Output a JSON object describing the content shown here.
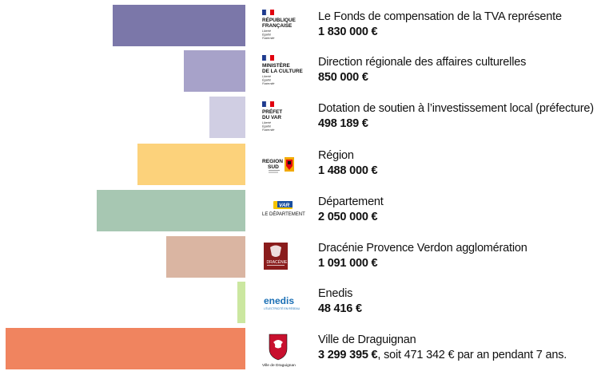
{
  "chart_data": {
    "type": "bar",
    "orientation": "horizontal",
    "categories": [
      "Le Fonds de compensation de la TVA représente",
      "Direction régionale des affaires culturelles",
      "Dotation de soutien à l’investissement local (préfecture)",
      "Région",
      "Département",
      "Dracénie Provence Verdon agglomération",
      "Enedis",
      "Ville de Draguignan"
    ],
    "values": [
      1830000,
      850000,
      498189,
      1488000,
      2050000,
      1091000,
      48416,
      3299395
    ],
    "value_labels": [
      "1 830 000 €",
      "850 000 €",
      "498 189 €",
      "1 488 000 €",
      "2 050 000 €",
      "1 091 000 €",
      "48 416 €",
      "3 299 395 €"
    ],
    "colors": [
      "#7b77a9",
      "#a7a2c9",
      "#d0cee3",
      "#fcd27b",
      "#a7c7b2",
      "#dab5a2",
      "#cbe7a0",
      "#f0845f"
    ],
    "xlim": [
      0,
      3299395
    ]
  },
  "annotations": {
    "draguignan_note": ", soit 471 342 € par an pendant 7 ans."
  },
  "logos": [
    {
      "icon": "marianne-logo",
      "lines": [
        "RÉPUBLIQUE",
        "FRANÇAISE"
      ],
      "motto": [
        "Liberté",
        "Égalité",
        "Fraternité"
      ]
    },
    {
      "icon": "marianne-logo",
      "lines": [
        "MINISTÈRE",
        "DE LA CULTURE"
      ],
      "motto": [
        "Liberté",
        "Égalité",
        "Fraternité"
      ]
    },
    {
      "icon": "marianne-logo",
      "lines": [
        "PRÉFET",
        "DU VAR"
      ],
      "motto": [
        "Liberté",
        "Égalité",
        "Fraternité"
      ]
    },
    {
      "icon": "region-sud-logo",
      "lines": [
        "REGION",
        "SUD"
      ]
    },
    {
      "icon": "var-departement-logo",
      "lines": [
        "VAR",
        "LE DÉPARTEMENT"
      ]
    },
    {
      "icon": "dracenie-logo",
      "lines": [
        "DRACÉNIE"
      ]
    },
    {
      "icon": "enedis-logo",
      "lines": [
        "enedis",
        "L'ÉLECTRICITÉ EN RÉSEAU"
      ]
    },
    {
      "icon": "draguignan-crest-logo",
      "lines": [
        "Ville de Draguignan"
      ]
    }
  ]
}
